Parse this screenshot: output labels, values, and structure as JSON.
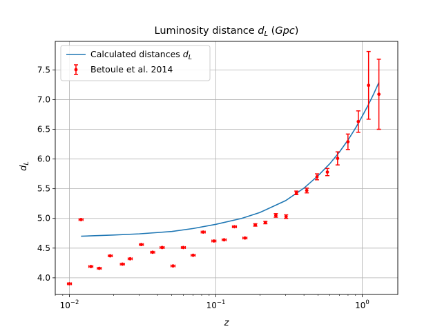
{
  "chart_data": {
    "type": "scatter",
    "title": "Luminosity distance d_L (Gpc)",
    "xlabel": "z",
    "ylabel": "d_L",
    "x_scale": "log",
    "xlim": [
      0.008,
      1.75
    ],
    "ylim": [
      3.72,
      7.98
    ],
    "grid": true,
    "legend_position": "top-left",
    "x_ticks": [
      0.01,
      0.1,
      1
    ],
    "x_tick_labels": [
      "10",
      "10",
      "10"
    ],
    "x_tick_exponents": [
      "−2",
      "−1",
      "0"
    ],
    "y_ticks": [
      4.0,
      4.5,
      5.0,
      5.5,
      6.0,
      6.5,
      7.0,
      7.5
    ],
    "y_tick_labels": [
      "4.0",
      "4.5",
      "5.0",
      "5.5",
      "6.0",
      "6.5",
      "7.0",
      "7.5"
    ],
    "series": [
      {
        "name": "Calculated distances d_L",
        "kind": "line",
        "color": "#1f77b4",
        "x": [
          0.012,
          0.02,
          0.03,
          0.05,
          0.07,
          0.1,
          0.15,
          0.2,
          0.3,
          0.4,
          0.5,
          0.6,
          0.7,
          0.8,
          0.9,
          1.0,
          1.1,
          1.2,
          1.3
        ],
        "y": [
          4.7,
          4.72,
          4.74,
          4.78,
          4.83,
          4.9,
          5.0,
          5.1,
          5.3,
          5.51,
          5.72,
          5.92,
          6.12,
          6.32,
          6.52,
          6.72,
          6.91,
          7.1,
          7.29
        ]
      },
      {
        "name": "Betoule et al. 2014",
        "kind": "errorbar",
        "color": "#ff0000",
        "x": [
          0.01,
          0.012,
          0.014,
          0.016,
          0.019,
          0.023,
          0.026,
          0.031,
          0.037,
          0.043,
          0.051,
          0.06,
          0.07,
          0.082,
          0.097,
          0.114,
          0.134,
          0.158,
          0.186,
          0.218,
          0.257,
          0.302,
          0.355,
          0.418,
          0.491,
          0.578,
          0.679,
          0.799,
          0.94,
          1.105,
          1.3
        ],
        "y": [
          3.9,
          4.98,
          4.19,
          4.16,
          4.37,
          4.23,
          4.32,
          4.56,
          4.43,
          4.51,
          4.2,
          4.51,
          4.38,
          4.77,
          4.62,
          4.64,
          4.86,
          4.67,
          4.89,
          4.93,
          5.05,
          5.03,
          5.43,
          5.47,
          5.7,
          5.78,
          6.01,
          6.29,
          6.63,
          7.24,
          7.09
        ],
        "yerr": [
          0.01,
          0.01,
          0.01,
          0.01,
          0.01,
          0.01,
          0.01,
          0.01,
          0.01,
          0.01,
          0.01,
          0.01,
          0.01,
          0.01,
          0.01,
          0.01,
          0.01,
          0.01,
          0.02,
          0.02,
          0.03,
          0.03,
          0.03,
          0.04,
          0.05,
          0.06,
          0.11,
          0.13,
          0.18,
          0.57,
          0.59
        ]
      }
    ]
  },
  "legend": {
    "items": [
      {
        "label": "Calculated distances ",
        "sub_main": "d",
        "sub": "L"
      },
      {
        "label": "Betoule et al. 2014"
      }
    ]
  }
}
